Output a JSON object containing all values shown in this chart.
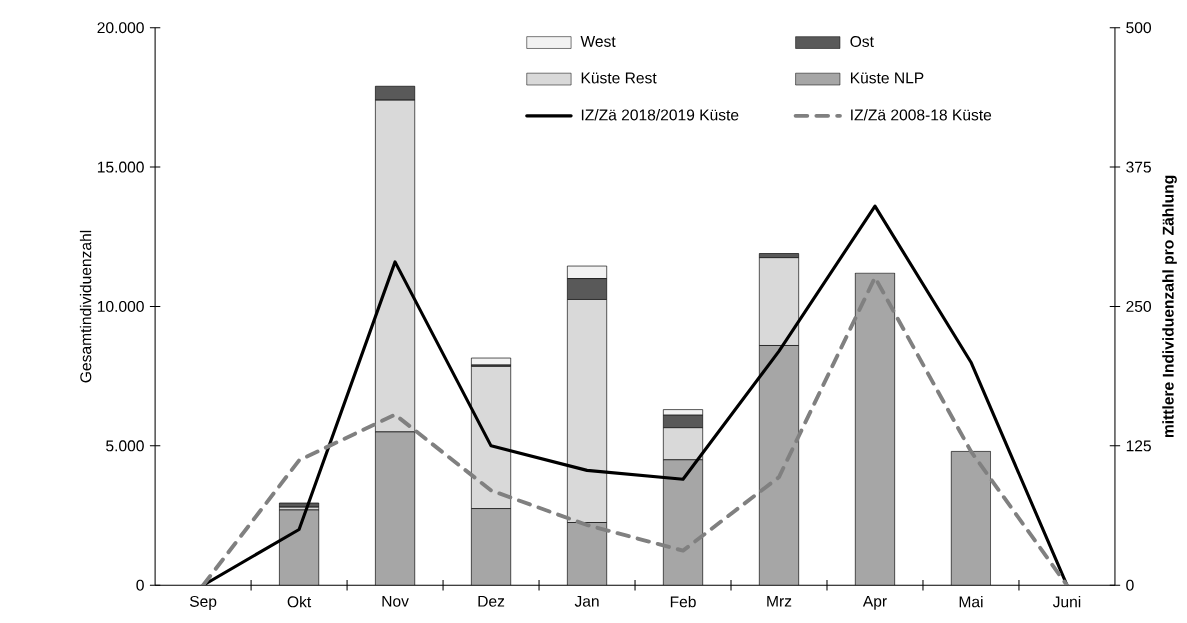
{
  "chart_data": {
    "type": "bar",
    "stacked": true,
    "ylabel": "Gesamtindividuenzahl",
    "y2label": "mittlere Individuenzahl pro Zählung",
    "categories": [
      "Sep",
      "Okt",
      "Nov",
      "Dez",
      "Jan",
      "Feb",
      "Mrz",
      "Apr",
      "Mai",
      "Juni"
    ],
    "series": [
      {
        "name": "Küste NLP",
        "color": "#a6a6a6",
        "values": [
          0,
          2700,
          5500,
          2750,
          2250,
          4500,
          8600,
          11200,
          4800,
          0
        ]
      },
      {
        "name": "Küste Rest",
        "color": "#d9d9d9",
        "values": [
          0,
          100,
          11900,
          5100,
          8000,
          1150,
          3150,
          0,
          0,
          0
        ]
      },
      {
        "name": "Ost",
        "color": "#595959",
        "values": [
          0,
          150,
          500,
          50,
          750,
          450,
          150,
          0,
          0,
          0
        ]
      },
      {
        "name": "West",
        "color": "#f2f2f2",
        "values": [
          0,
          0,
          0,
          250,
          450,
          200,
          0,
          0,
          0,
          0
        ]
      },
      {
        "name": "IZ/Zä 2018/2019 Küste",
        "type": "line",
        "axis": "y2",
        "color": "#000000",
        "line_style": "solid",
        "values": [
          0,
          50,
          290,
          125,
          103,
          95,
          210,
          340,
          200,
          0
        ]
      },
      {
        "name": "IZ/Zä 2008-18 Küste",
        "type": "line",
        "axis": "y2",
        "color": "#808080",
        "line_style": "dashed",
        "values": [
          0,
          112,
          153,
          85,
          54,
          31,
          97,
          276,
          120,
          0
        ]
      }
    ],
    "ylim": [
      0,
      20000
    ],
    "yticks": [
      0,
      {
        "value": 5000,
        "label": "5.000"
      },
      {
        "value": 10000,
        "label": "10.000"
      },
      {
        "value": 15000,
        "label": "15.000"
      },
      {
        "value": 20000,
        "label": "20.000"
      }
    ],
    "y2lim": [
      0,
      500
    ],
    "y2ticks": [
      0,
      125,
      250,
      375,
      500
    ],
    "legend": "top",
    "marker": "none",
    "grid": false
  }
}
